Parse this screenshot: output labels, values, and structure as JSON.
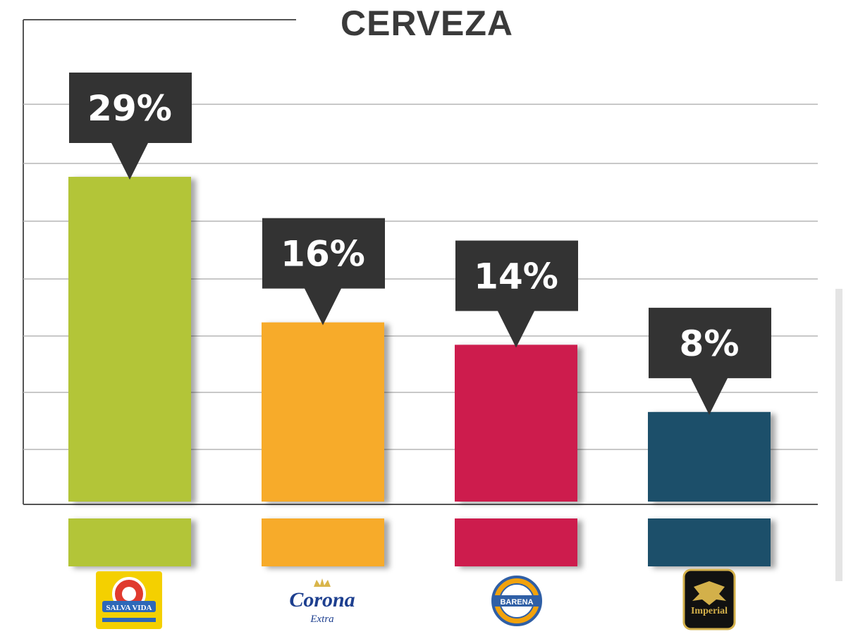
{
  "chart_data": {
    "type": "bar",
    "title": "CERVEZA",
    "categories": [
      "Salva Vida",
      "Corona Extra",
      "Barena",
      "Imperial"
    ],
    "values": [
      29,
      16,
      14,
      8
    ],
    "data_labels": [
      "29%",
      "16%",
      "14%",
      "8%"
    ],
    "unit": "%",
    "ylim": [
      0,
      35
    ],
    "grid": true,
    "legend": "none",
    "colors": [
      "#b3c537",
      "#f7ab2a",
      "#cd1f4e",
      "#1c4f6b"
    ]
  },
  "logos": [
    {
      "icon": "salva-vida-logo-icon",
      "text": "SALVA VIDA",
      "color": "#f4d000"
    },
    {
      "icon": "corona-logo-icon",
      "text": "Corona",
      "subtext": "Extra",
      "color": "#1d3f8f"
    },
    {
      "icon": "barena-logo-icon",
      "text": "BARENA",
      "color": "#2f5fa6"
    },
    {
      "icon": "imperial-logo-icon",
      "text": "Imperial",
      "color": "#111111"
    }
  ]
}
